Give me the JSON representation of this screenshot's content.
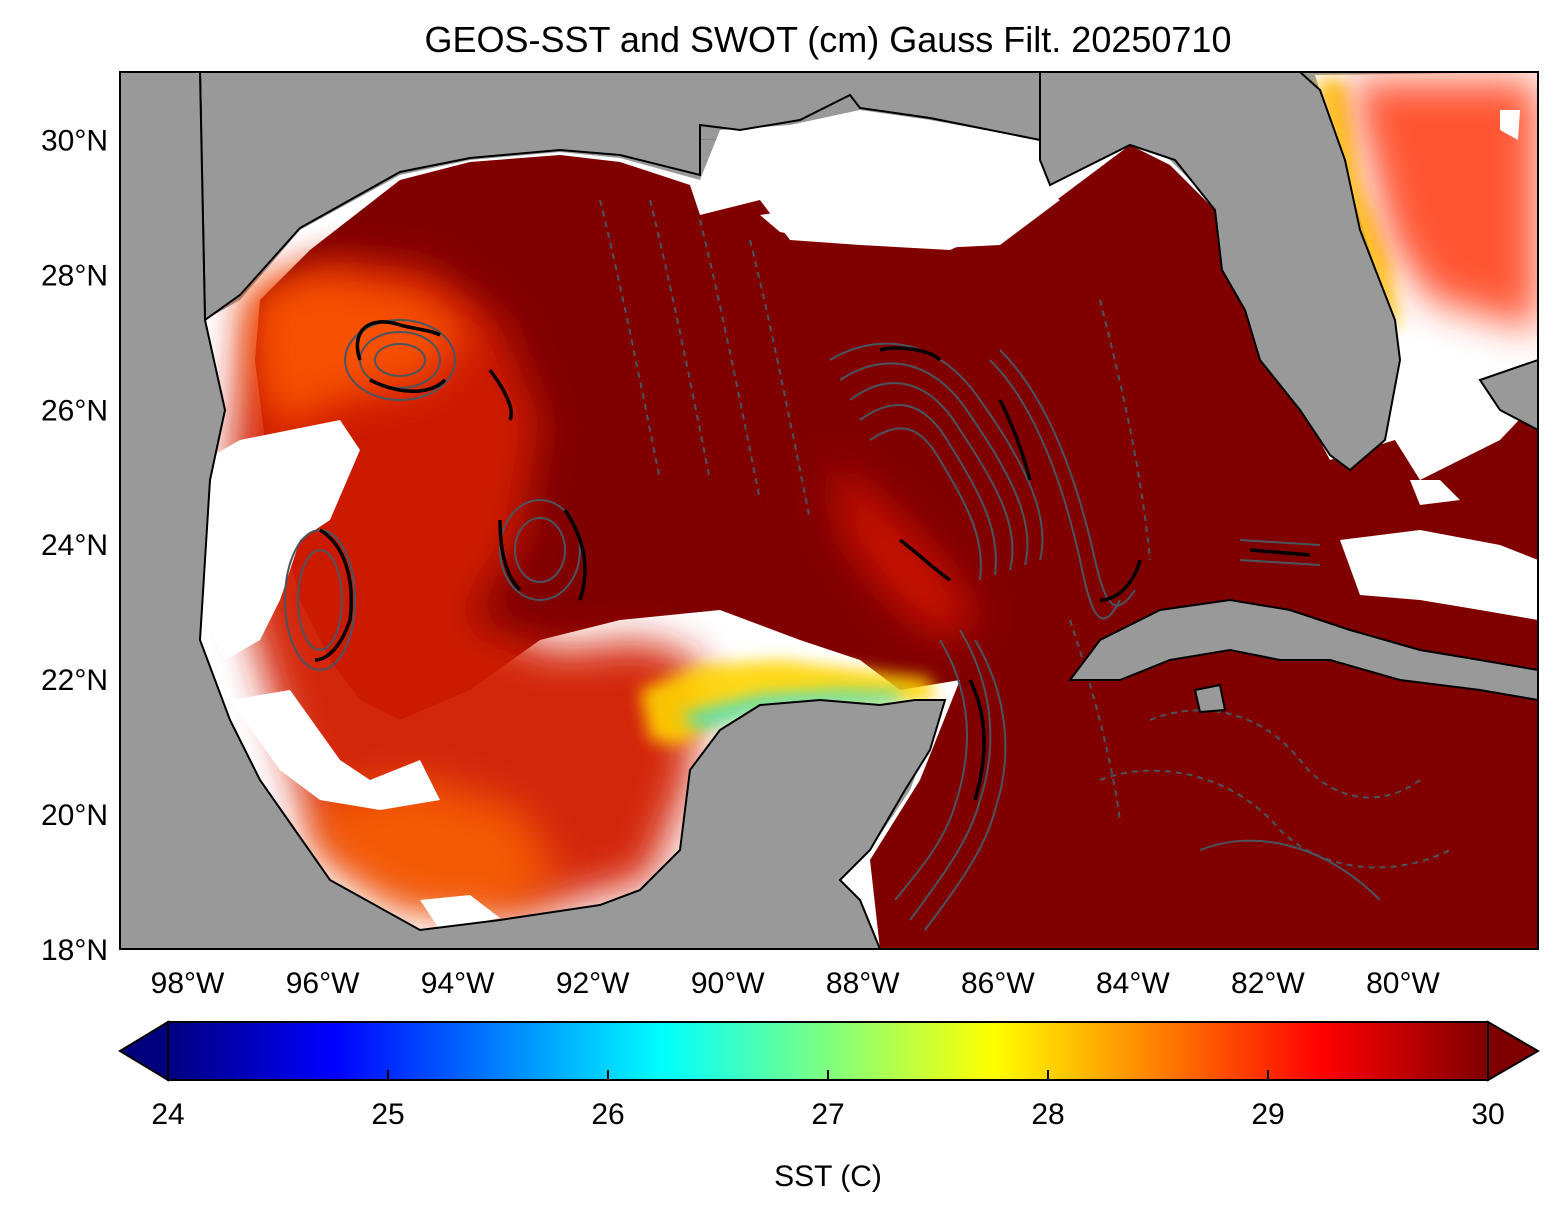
{
  "title": "GEOS-SST  and SWOT (cm) Gauss Filt. 20250710",
  "map": {
    "region": "Gulf of Mexico",
    "lon_range": [
      -99,
      -78
    ],
    "lat_range": [
      18,
      31
    ],
    "land_color": "#999999",
    "missing_color": "#ffffff",
    "coastline_color": "#000000",
    "contour_color": "#4a5560",
    "strong_contour_color": "#000000",
    "lat_ticks": [
      {
        "value": 30,
        "label": "30°N"
      },
      {
        "value": 28,
        "label": "28°N"
      },
      {
        "value": 26,
        "label": "26°N"
      },
      {
        "value": 24,
        "label": "24°N"
      },
      {
        "value": 22,
        "label": "22°N"
      },
      {
        "value": 20,
        "label": "20°N"
      },
      {
        "value": 18,
        "label": "18°N"
      }
    ],
    "lon_ticks": [
      {
        "value": -98,
        "label": "98°W"
      },
      {
        "value": -96,
        "label": "96°W"
      },
      {
        "value": -94,
        "label": "94°W"
      },
      {
        "value": -92,
        "label": "92°W"
      },
      {
        "value": -90,
        "label": "90°W"
      },
      {
        "value": -88,
        "label": "88°W"
      },
      {
        "value": -86,
        "label": "86°W"
      },
      {
        "value": -84,
        "label": "84°W"
      },
      {
        "value": -82,
        "label": "82°W"
      },
      {
        "value": -80,
        "label": "80°W"
      }
    ]
  },
  "colorbar": {
    "label": "SST (C)",
    "vmin": 24,
    "vmax": 30,
    "extend": "both",
    "colormap": "jet",
    "ticks": [
      {
        "value": 24,
        "label": "24"
      },
      {
        "value": 25,
        "label": "25"
      },
      {
        "value": 26,
        "label": "26"
      },
      {
        "value": 27,
        "label": "27"
      },
      {
        "value": 28,
        "label": "28"
      },
      {
        "value": 29,
        "label": "29"
      },
      {
        "value": 30,
        "label": "30"
      }
    ],
    "stops": [
      "#00007f",
      "#0000ff",
      "#007fff",
      "#00ffff",
      "#7fff7f",
      "#ffff00",
      "#ff7f00",
      "#ff0000",
      "#7f0000"
    ]
  }
}
